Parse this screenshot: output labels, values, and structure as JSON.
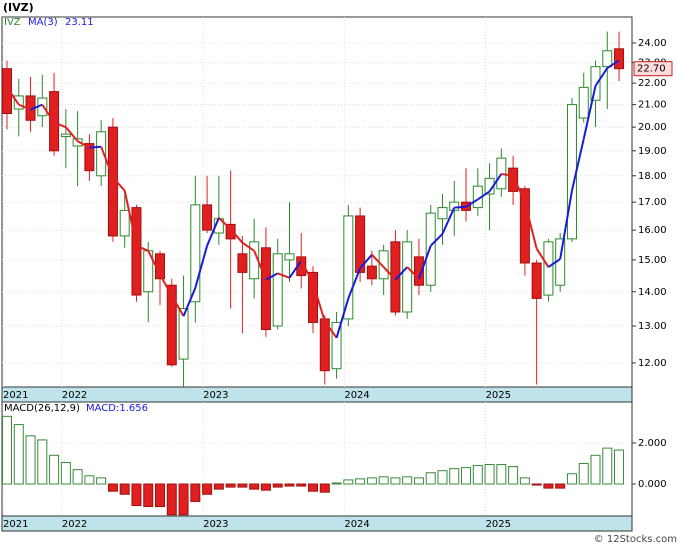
{
  "title": "(IVZ)",
  "footer": "© 12Stocks.com",
  "chart_data": [
    {
      "type": "candlestick",
      "log_scale": true,
      "grid": true,
      "categories": [
        "2021",
        null,
        null,
        null,
        null,
        "2022",
        null,
        null,
        null,
        null,
        null,
        null,
        null,
        null,
        null,
        null,
        null,
        "2023",
        null,
        null,
        null,
        null,
        null,
        null,
        null,
        null,
        null,
        null,
        null,
        "2024",
        null,
        null,
        null,
        null,
        null,
        null,
        null,
        null,
        null,
        null,
        null,
        "2025",
        null,
        null,
        null,
        null,
        null,
        null,
        null,
        null,
        null,
        null,
        null
      ],
      "series": [
        {
          "name": "IVZ",
          "color": "#2a8a2a",
          "down_color": "#e02020",
          "open": [
            22.7,
            20.8,
            21.4,
            20.5,
            21.6,
            19.6,
            19.2,
            19.3,
            18.0,
            20.0,
            15.8,
            16.8,
            14.0,
            15.2,
            14.2,
            12.1,
            13.7,
            16.9,
            15.9,
            16.2,
            15.2,
            14.4,
            15.4,
            13.0,
            15.0,
            15.1,
            14.6,
            13.2,
            11.85,
            13.2,
            16.5,
            14.8,
            14.4,
            15.6,
            13.4,
            15.1,
            14.2,
            16.4,
            16.7,
            17.0,
            16.8,
            17.3,
            17.5,
            18.3,
            17.5,
            14.9,
            13.9,
            14.2,
            15.7,
            20.4,
            21.2,
            22.8,
            23.7
          ],
          "high": [
            23.1,
            22.2,
            22.3,
            22.4,
            22.5,
            20.8,
            20.7,
            19.7,
            20.3,
            20.4,
            17.3,
            16.9,
            15.6,
            15.3,
            14.4,
            14.5,
            18.0,
            18.0,
            18.0,
            18.2,
            15.8,
            16.4,
            16.1,
            15.7,
            17.0,
            15.9,
            14.8,
            13.3,
            13.4,
            16.9,
            16.8,
            15.3,
            15.5,
            16.0,
            16.0,
            15.7,
            16.9,
            17.3,
            17.8,
            18.3,
            18.3,
            18.5,
            19.1,
            18.8,
            17.6,
            15.0,
            15.7,
            15.9,
            21.3,
            22.5,
            23.1,
            24.6,
            24.6
          ],
          "low": [
            19.9,
            19.6,
            19.8,
            20.0,
            18.8,
            18.3,
            17.6,
            17.8,
            17.6,
            15.6,
            15.4,
            13.7,
            13.1,
            13.6,
            11.9,
            11.4,
            13.1,
            15.9,
            15.5,
            13.5,
            12.8,
            13.8,
            12.7,
            12.9,
            14.3,
            14.1,
            12.8,
            11.45,
            11.6,
            13.0,
            14.3,
            14.2,
            13.9,
            13.3,
            13.2,
            13.9,
            14.0,
            15.5,
            15.8,
            16.3,
            16.5,
            16.0,
            17.2,
            16.9,
            14.5,
            11.45,
            13.7,
            14.0,
            15.6,
            20.2,
            20.0,
            20.8,
            22.1
          ],
          "close": [
            20.6,
            21.4,
            20.3,
            21.3,
            19.0,
            19.7,
            19.5,
            18.2,
            19.8,
            15.8,
            16.7,
            13.9,
            15.3,
            14.4,
            11.95,
            13.5,
            16.9,
            16.0,
            16.4,
            15.7,
            14.6,
            15.6,
            12.9,
            15.2,
            15.2,
            14.5,
            13.1,
            11.8,
            13.1,
            16.5,
            14.6,
            14.4,
            15.3,
            13.4,
            15.6,
            14.2,
            16.6,
            16.8,
            17.0,
            16.7,
            17.6,
            17.9,
            18.7,
            17.4,
            14.9,
            13.8,
            15.6,
            15.7,
            21.0,
            21.8,
            22.8,
            23.6,
            22.7
          ],
          "last_label": "22.70"
        },
        {
          "name": "MA(3)",
          "color": "#1a1adc",
          "down_color": "#e02020",
          "last_label": "23.11",
          "values": [
            21.8,
            21.0,
            20.77,
            21.0,
            20.2,
            20.0,
            19.4,
            19.13,
            19.17,
            17.93,
            17.43,
            15.47,
            15.3,
            14.53,
            13.88,
            13.28,
            14.12,
            15.47,
            16.43,
            16.03,
            15.57,
            15.3,
            14.37,
            14.57,
            14.43,
            14.97,
            14.27,
            13.13,
            12.67,
            13.8,
            14.73,
            15.17,
            14.77,
            14.37,
            14.77,
            14.4,
            15.47,
            15.87,
            16.8,
            16.83,
            17.1,
            17.4,
            18.07,
            18.0,
            17.0,
            15.37,
            14.77,
            15.03,
            17.43,
            19.5,
            21.87,
            22.73,
            23.11
          ]
        }
      ],
      "ylim": [
        11.39,
        25.39
      ],
      "yticks": [
        {
          "value": 12,
          "label": "12.00"
        },
        {
          "value": 13,
          "label": "13.00"
        },
        {
          "value": 14,
          "label": "14.00"
        },
        {
          "value": 15,
          "label": "15.00"
        },
        {
          "value": 16,
          "label": "16.00"
        },
        {
          "value": 17,
          "label": "17.00"
        },
        {
          "value": 18,
          "label": "18.00"
        },
        {
          "value": 19,
          "label": "19.00"
        },
        {
          "value": 20,
          "label": "20.00"
        },
        {
          "value": 21,
          "label": "21.00"
        },
        {
          "value": 22,
          "label": "22.00"
        },
        {
          "value": 23,
          "label": "23.00"
        },
        {
          "value": 24,
          "label": "24.00"
        }
      ]
    },
    {
      "type": "bar",
      "name": "MACD(26,12,9)",
      "indicator_label": "MACD:1.656",
      "grid": true,
      "color": "#3a8a3a",
      "down_color": "#e02020",
      "categories": [
        "2021",
        null,
        null,
        null,
        null,
        "2022",
        null,
        null,
        null,
        null,
        null,
        null,
        null,
        null,
        null,
        null,
        null,
        "2023",
        null,
        null,
        null,
        null,
        null,
        null,
        null,
        null,
        null,
        null,
        null,
        "2024",
        null,
        null,
        null,
        null,
        null,
        null,
        null,
        null,
        null,
        null,
        null,
        "2025",
        null,
        null,
        null,
        null,
        null,
        null,
        null,
        null,
        null,
        null,
        null
      ],
      "values": [
        3.3,
        2.9,
        2.35,
        2.15,
        1.4,
        1.05,
        0.7,
        0.4,
        0.3,
        -0.35,
        -0.5,
        -1.05,
        -1.1,
        -1.1,
        -1.5,
        -1.5,
        -0.85,
        -0.5,
        -0.25,
        -0.15,
        -0.15,
        -0.25,
        -0.3,
        -0.15,
        -0.1,
        -0.1,
        -0.35,
        -0.4,
        0.05,
        0.2,
        0.25,
        0.3,
        0.35,
        0.3,
        0.35,
        0.3,
        0.55,
        0.65,
        0.75,
        0.8,
        0.9,
        0.95,
        0.95,
        0.85,
        0.3,
        -0.05,
        -0.2,
        -0.2,
        0.5,
        1.0,
        1.4,
        1.75,
        1.656
      ],
      "ylim": [
        -1.56,
        4.0
      ],
      "yticks": [
        {
          "value": 0,
          "label": "0.000"
        },
        {
          "value": 2,
          "label": "2.000"
        }
      ]
    }
  ]
}
